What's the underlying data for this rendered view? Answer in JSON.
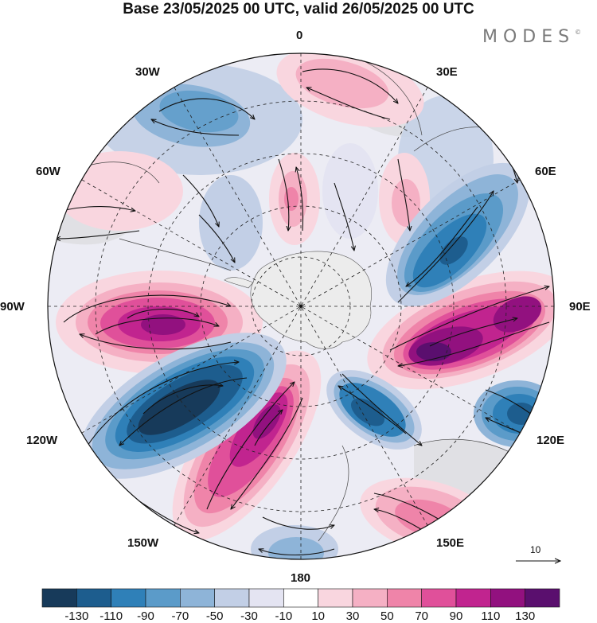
{
  "title": "Base 23/05/2025 00 UTC, valid 26/05/2025 00 UTC",
  "logo": {
    "text": "MODES",
    "mark": "©"
  },
  "longitude_labels": {
    "lon_0": "0",
    "lon_30e": "30E",
    "lon_60e": "60E",
    "lon_90e": "90E",
    "lon_120e": "120E",
    "lon_150e": "150E",
    "lon_180": "180",
    "lon_150w": "150W",
    "lon_120w": "120W",
    "lon_90w": "90W",
    "lon_60w": "60W",
    "lon_30w": "30W"
  },
  "vector_reference": {
    "value": "10"
  },
  "colorbar": {
    "colors": [
      "#173a5a",
      "#1d5d8e",
      "#2f80b8",
      "#5b9bc9",
      "#8eb4d8",
      "#c2cfe6",
      "#e4e4f2",
      "#ffffff",
      "#f9d6df",
      "#f5b0c4",
      "#ef84a9",
      "#e0509a",
      "#c1248f",
      "#92117f",
      "#5a0f6e"
    ],
    "ticks": [
      "-130",
      "-110",
      "-90",
      "-70",
      "-50",
      "-30",
      "-10",
      "10",
      "30",
      "50",
      "70",
      "90",
      "110",
      "130"
    ]
  },
  "colors": {
    "land": "#d8d8d8",
    "antarctica": "#ececec",
    "ocean_neutral": "#ececf4"
  }
}
